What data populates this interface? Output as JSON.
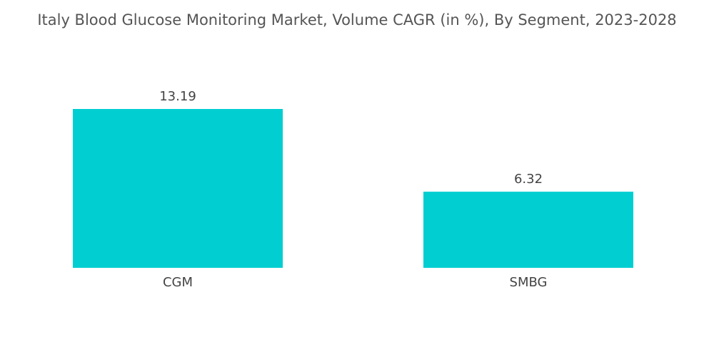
{
  "chart_data": {
    "type": "bar",
    "title": "Italy Blood Glucose Monitoring Market, Volume CAGR (in %), By Segment, 2023-2028",
    "categories": [
      "CGM",
      "SMBG"
    ],
    "values": [
      13.19,
      6.32
    ],
    "value_labels": [
      "13.19",
      "6.32"
    ],
    "xlabel": "",
    "ylabel": "",
    "ylim": [
      0,
      13.19
    ],
    "grid": false,
    "legend": "none",
    "bar_color": "#00CED1"
  }
}
